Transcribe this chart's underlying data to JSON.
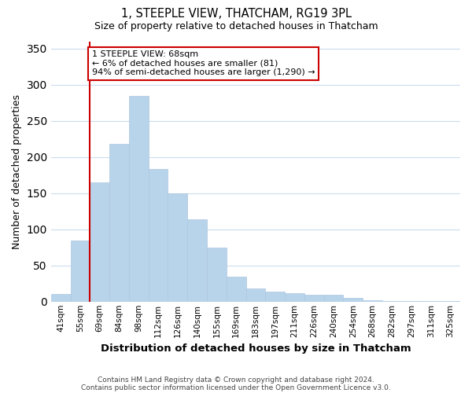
{
  "title": "1, STEEPLE VIEW, THATCHAM, RG19 3PL",
  "subtitle": "Size of property relative to detached houses in Thatcham",
  "xlabel": "Distribution of detached houses by size in Thatcham",
  "ylabel": "Number of detached properties",
  "bar_labels": [
    "41sqm",
    "55sqm",
    "69sqm",
    "84sqm",
    "98sqm",
    "112sqm",
    "126sqm",
    "140sqm",
    "155sqm",
    "169sqm",
    "183sqm",
    "197sqm",
    "211sqm",
    "226sqm",
    "240sqm",
    "254sqm",
    "268sqm",
    "282sqm",
    "297sqm",
    "311sqm",
    "325sqm"
  ],
  "bar_values": [
    11,
    84,
    165,
    218,
    285,
    183,
    150,
    114,
    75,
    35,
    18,
    14,
    12,
    9,
    9,
    5,
    2,
    1,
    1,
    1,
    1
  ],
  "bar_color": "#b8d4ea",
  "bar_edge_color": "#aec6e0",
  "vline_color": "#cc0000",
  "vline_index": 2,
  "annotation_text": "1 STEEPLE VIEW: 68sqm\n← 6% of detached houses are smaller (81)\n94% of semi-detached houses are larger (1,290) →",
  "annotation_box_edgecolor": "#cc0000",
  "annotation_box_facecolor": "#ffffff",
  "ylim": [
    0,
    360
  ],
  "yticks": [
    0,
    50,
    100,
    150,
    200,
    250,
    300,
    350
  ],
  "background_color": "#ffffff",
  "grid_color": "#ccdcee",
  "footer_line1": "Contains HM Land Registry data © Crown copyright and database right 2024.",
  "footer_line2": "Contains public sector information licensed under the Open Government Licence v3.0."
}
